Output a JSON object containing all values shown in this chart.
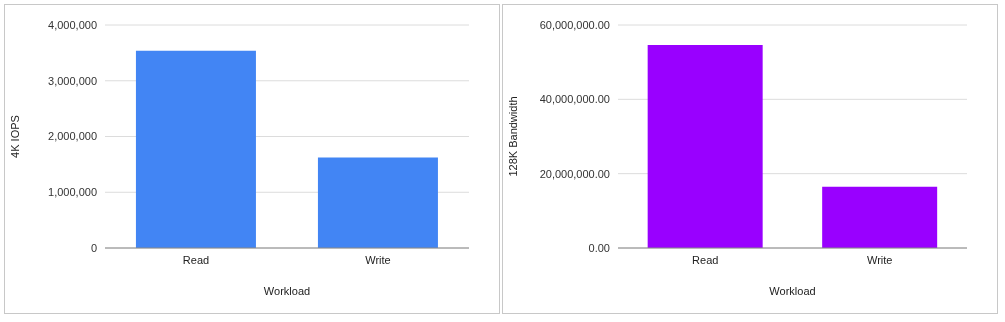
{
  "chart_data": [
    {
      "type": "bar",
      "xlabel": "Workload",
      "ylabel": "4K IOPS",
      "categories": [
        "Read",
        "Write"
      ],
      "values": [
        3540000,
        1625000
      ],
      "color": "#4285f4",
      "ylim": [
        0,
        4000000
      ],
      "yticks": [
        {
          "value": 0,
          "label": "0"
        },
        {
          "value": 1000000,
          "label": "1,000,000"
        },
        {
          "value": 2000000,
          "label": "2,000,000"
        },
        {
          "value": 3000000,
          "label": "3,000,000"
        },
        {
          "value": 4000000,
          "label": "4,000,000"
        }
      ],
      "grid": "y",
      "legend": false
    },
    {
      "type": "bar",
      "xlabel": "Workload",
      "ylabel": "128K Bandwidth",
      "categories": [
        "Read",
        "Write"
      ],
      "values": [
        54600000,
        16500000
      ],
      "color": "#9900ff",
      "ylim": [
        0,
        60000000
      ],
      "yticks": [
        {
          "value": 0,
          "label": "0.00"
        },
        {
          "value": 20000000,
          "label": "20,000,000.00"
        },
        {
          "value": 40000000,
          "label": "40,000,000.00"
        },
        {
          "value": 60000000,
          "label": "60,000,000.00"
        }
      ],
      "grid": "y",
      "legend": false
    }
  ]
}
